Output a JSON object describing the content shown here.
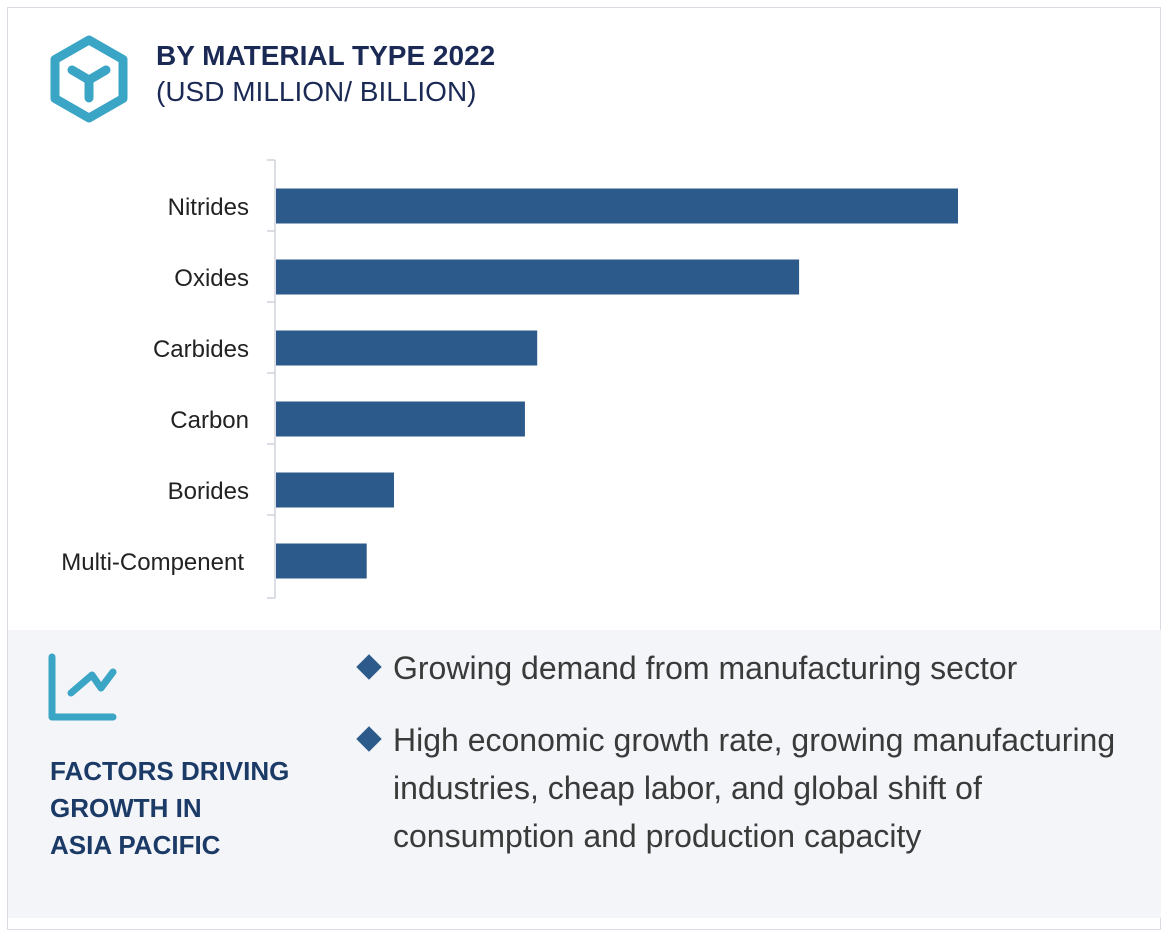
{
  "header": {
    "title": "BY MATERIAL TYPE 2022",
    "subtitle": "(USD MILLION/ BILLION)",
    "icon": "hexagon-cube-icon"
  },
  "chart_data": {
    "type": "bar",
    "orientation": "horizontal",
    "categories": [
      "Nitrides",
      "Oxides",
      "Carbides",
      "Carbon",
      "Borides",
      "Multi-Compenent"
    ],
    "values": [
      100,
      76.7,
      38.3,
      36.5,
      17.3,
      13.3
    ],
    "value_scale": "relative (no numeric axis shown)",
    "bar_color": "#2c5a8a",
    "grid": false
  },
  "factors": {
    "icon": "trend-chart-icon",
    "title_lines": [
      "FACTORS DRIVING",
      "GROWTH IN",
      "ASIA PACIFIC"
    ],
    "bullets": [
      "Growing demand from manufacturing sector",
      "High economic growth rate, growing manufacturing industries, cheap labor, and global shift of consumption and production capacity"
    ]
  },
  "colors": {
    "accent": "#3aa5c4",
    "navy": "#1b2a55",
    "bar": "#2c5a8a"
  }
}
